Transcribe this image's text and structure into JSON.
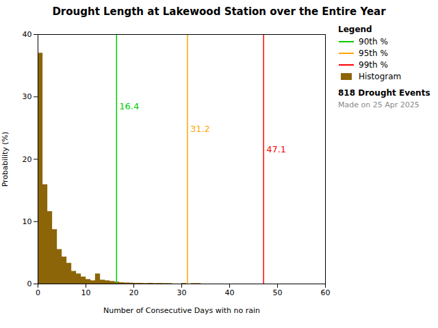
{
  "chart_data": {
    "type": "histogram",
    "title": "Drought Length at Lakewood Station over the Entire Year",
    "xlabel": "Number of Consecutive Days with no rain",
    "ylabel": "Probability (%)",
    "name": "Histogram",
    "color": "#8B6508",
    "bins": [
      0,
      1,
      2,
      3,
      4,
      5,
      6,
      7,
      8,
      9,
      10,
      11,
      12,
      13,
      14,
      15,
      16,
      17,
      18,
      19,
      20,
      21,
      22,
      23,
      24,
      25,
      26,
      27,
      28,
      29,
      30,
      31,
      32,
      33,
      34,
      35,
      36,
      37,
      38,
      39,
      40,
      41,
      42,
      43,
      44,
      45,
      46,
      47,
      48,
      49,
      50,
      51,
      52,
      53,
      54,
      55,
      56,
      57,
      58,
      59,
      60
    ],
    "values": [
      37.0,
      15.9,
      11.6,
      8.7,
      5.5,
      4.3,
      3.3,
      2.0,
      1.6,
      1.1,
      0.7,
      0.5,
      1.6,
      0.6,
      0.5,
      0.4,
      0.3,
      0.2,
      0.15,
      0.12,
      0.1,
      0.1,
      0.05,
      0.1,
      0.05,
      0.08,
      0.05,
      0.04,
      0.0,
      0.0,
      0.08,
      0.0,
      0.05,
      0.04,
      0.0,
      0.0,
      0.0,
      0.0,
      0.0,
      0.0,
      0.0,
      0.0,
      0.0,
      0.0,
      0.0,
      0.0,
      0.0,
      0.0,
      0.0,
      0.0,
      0.0,
      0.0,
      0.0,
      0.0,
      0.0,
      0.0,
      0.0,
      0.0,
      0.0,
      0.0
    ],
    "vlines": [
      {
        "name": "90th %",
        "x": 16.4,
        "color": "#00CC00"
      },
      {
        "name": "95th %",
        "x": 31.2,
        "color": "#FFA500"
      },
      {
        "name": "99th %",
        "x": 47.1,
        "color": "#FF0000"
      }
    ],
    "annotations": [
      {
        "text": "16.4",
        "x": 16.4,
        "y": 28.5,
        "color": "#00CC00"
      },
      {
        "text": "31.2",
        "x": 31.2,
        "y": 24.8,
        "color": "#FFA500"
      },
      {
        "text": "47.1",
        "x": 47.1,
        "y": 21.5,
        "color": "#FF0000"
      }
    ],
    "legend_title": "Legend",
    "notes": [
      "818 Drought Events",
      "Made on 25 Apr 2025"
    ],
    "xlim": [
      0,
      60
    ],
    "ylim": [
      0,
      40
    ],
    "xticks": [
      0,
      10,
      20,
      30,
      40,
      50,
      60
    ],
    "yticks": [
      0,
      10,
      20,
      30,
      40
    ],
    "legend": "upper right",
    "grid": false
  }
}
